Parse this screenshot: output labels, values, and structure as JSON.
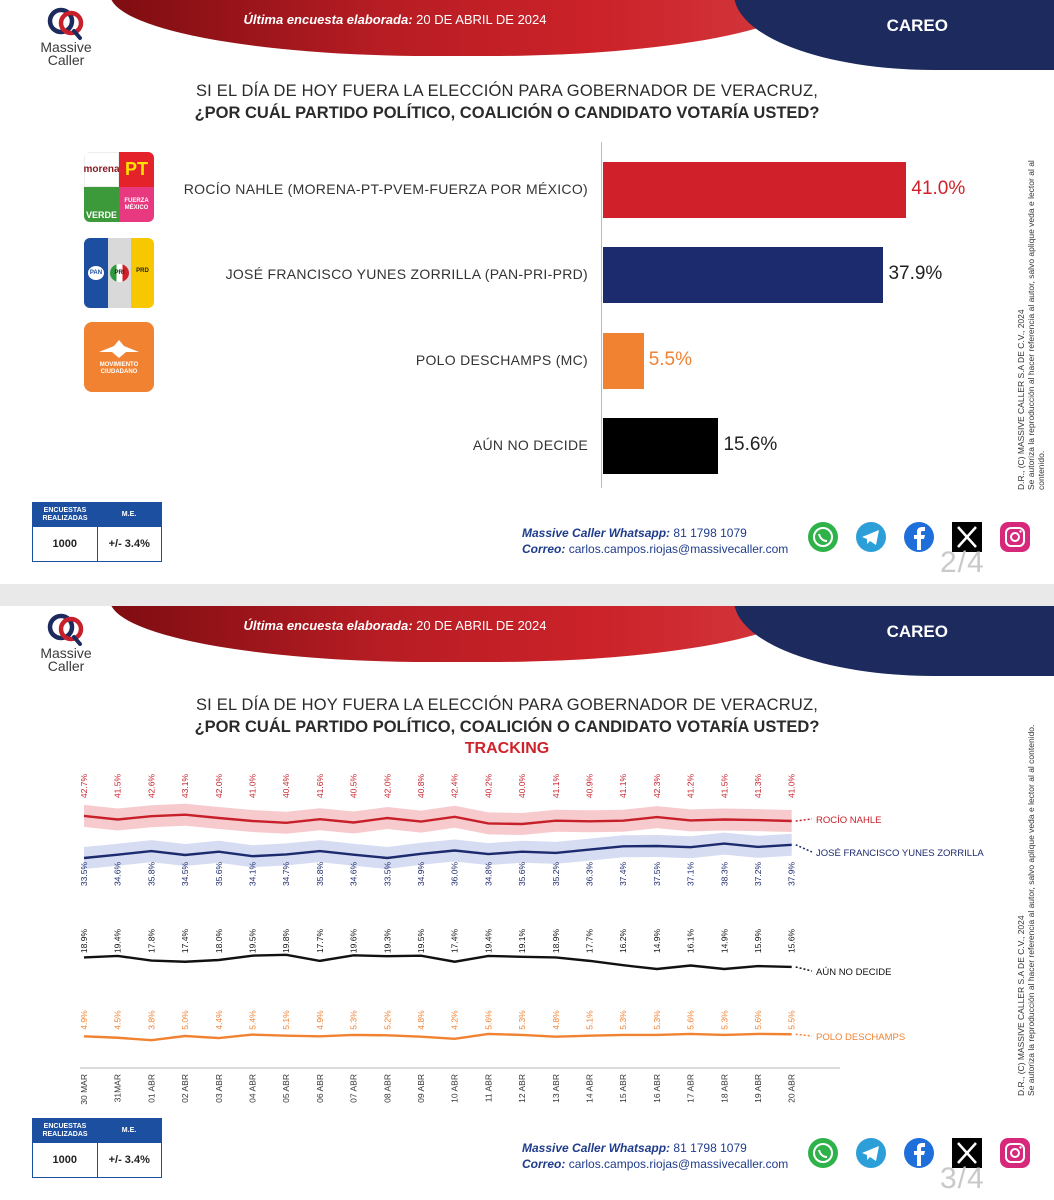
{
  "header": {
    "label": "Última encuesta elaborada:",
    "date": "20 DE ABRIL DE 2024",
    "section": "CAREO"
  },
  "logo": {
    "line1": "Massive",
    "line2": "Caller"
  },
  "question": {
    "line1": "SI EL DÍA DE HOY FUERA LA ELECCIÓN PARA GOBERNADOR DE VERACRUZ,",
    "line2": "¿POR CUÁL PARTIDO POLÍTICO, COALICIÓN O CANDIDATO  VOTARÍA USTED?",
    "tracking": "TRACKING"
  },
  "side_note": {
    "line1": "D.R., (C) MASSIVE CALLER S.A DE C.V., 2024",
    "line2": "Se autoriza la reproducción al hacer referencia al autor, salvo aplique veda e lector al al contenido."
  },
  "party_logos": {
    "morena": "morena",
    "pt": "PT",
    "verde": "VERDE",
    "fxm": "FUERZA MÉXICO",
    "pan": "PAN",
    "pri": "PRI",
    "prd": "PRD",
    "mc1": "MOVIMIENTO",
    "mc2": "CIUDADANO"
  },
  "chart_data": [
    {
      "type": "bar",
      "orientation": "horizontal",
      "categories": [
        "ROCÍO NAHLE (MORENA-PT-PVEM-FUERZA POR MÉXICO)",
        "JOSÉ FRANCISCO YUNES ZORRILLA (PAN-PRI-PRD)",
        "POLO DESCHAMPS (MC)",
        "AÚN NO DECIDE"
      ],
      "values": [
        41.0,
        37.9,
        5.5,
        15.6
      ],
      "value_labels": [
        "41.0%",
        "37.9%",
        "5.5%",
        "15.6%"
      ],
      "colors": [
        "#d0202a",
        "#1c2a6e",
        "#f08232",
        "#000000"
      ]
    },
    {
      "type": "line",
      "x": [
        "30 MAR",
        "31MAR",
        "01 ABR",
        "02 ABR",
        "03 ABR",
        "04 ABR",
        "05 ABR",
        "06 ABR",
        "07 ABR",
        "08 ABR",
        "09 ABR",
        "10 ABR",
        "11 ABR",
        "12 ABR",
        "13 ABR",
        "14 ABR",
        "15 ABR",
        "16 ABR",
        "17 ABR",
        "18 ABR",
        "19 ABR",
        "20 ABR"
      ],
      "series": [
        {
          "name": "ROCÍO NAHLE",
          "color": "#c8202a",
          "values": [
            42.7,
            41.5,
            42.6,
            43.1,
            42.0,
            41.0,
            40.4,
            41.6,
            40.5,
            42.0,
            40.8,
            42.4,
            40.2,
            40.0,
            41.1,
            40.9,
            41.1,
            42.3,
            41.2,
            41.5,
            41.3,
            41.0
          ],
          "labels": [
            "42.7%",
            "41.5%",
            "42.6%",
            "43.1%",
            "42.0%",
            "41.0%",
            "40.4%",
            "41.6%",
            "40.5%",
            "42.0%",
            "40.8%",
            "42.4%",
            "40.2%",
            "40.0%",
            "41.1%",
            "40.9%",
            "41.1%",
            "42.3%",
            "41.2%",
            "41.5%",
            "41.3%",
            "41.0%"
          ]
        },
        {
          "name": "JOSÉ FRANCISCO YUNES ZORRILLA",
          "color": "#1c2a6e",
          "values": [
            33.5,
            34.6,
            35.8,
            34.5,
            35.6,
            34.1,
            34.7,
            35.8,
            34.6,
            33.5,
            34.9,
            36.0,
            34.8,
            35.6,
            35.2,
            36.3,
            37.4,
            37.5,
            37.1,
            38.3,
            37.2,
            37.9
          ],
          "labels": [
            "33.5%",
            "34.6%",
            "35.8%",
            "34.5%",
            "35.6%",
            "34.1%",
            "34.7%",
            "35.8%",
            "34.6%",
            "33.5%",
            "34.9%",
            "36.0%",
            "34.8%",
            "35.6%",
            "35.2%",
            "36.3%",
            "37.4%",
            "37.5%",
            "37.1%",
            "38.3%",
            "37.2%",
            "37.9%"
          ]
        },
        {
          "name": "AÚN NO DECIDE",
          "color": "#111111",
          "values": [
            18.9,
            19.4,
            17.8,
            17.4,
            18.0,
            19.5,
            19.8,
            17.7,
            19.6,
            19.3,
            19.5,
            17.4,
            19.4,
            19.1,
            18.9,
            17.7,
            16.2,
            14.9,
            16.1,
            14.9,
            15.9,
            15.6
          ],
          "labels": [
            "18.9%",
            "19.4%",
            "17.8%",
            "17.4%",
            "18.0%",
            "19.5%",
            "19.8%",
            "17.7%",
            "19.6%",
            "19.3%",
            "19.5%",
            "17.4%",
            "19.4%",
            "19.1%",
            "18.9%",
            "17.7%",
            "16.2%",
            "14.9%",
            "16.1%",
            "14.9%",
            "15.9%",
            "15.6%"
          ]
        },
        {
          "name": "POLO DESCHAMPS",
          "color": "#f08232",
          "values": [
            4.9,
            4.5,
            3.8,
            5.0,
            4.4,
            5.4,
            5.1,
            4.9,
            5.3,
            5.2,
            4.8,
            4.2,
            5.6,
            5.3,
            4.8,
            5.1,
            5.3,
            5.3,
            5.6,
            5.3,
            5.6,
            5.5
          ],
          "labels": [
            "4.9%",
            "4.5%",
            "3.8%",
            "5.0%",
            "4.4%",
            "5.4%",
            "5.1%",
            "4.9%",
            "5.3%",
            "5.2%",
            "4.8%",
            "4.2%",
            "5.6%",
            "5.3%",
            "4.8%",
            "5.1%",
            "5.3%",
            "5.3%",
            "5.6%",
            "5.3%",
            "5.6%",
            "5.5%"
          ]
        }
      ]
    }
  ],
  "footer": {
    "col1_header": "ENCUESTAS REALIZADAS",
    "col2_header": "M.E.",
    "col1_value": "1000",
    "col2_value": "+/- 3.4%",
    "whatsapp_label": "Massive Caller Whatsapp:",
    "whatsapp_number": "81 1798 1079",
    "email_label": "Correo:",
    "email": "carlos.campos.riojas@massivecaller.com",
    "page1": "2/4",
    "page2": "3/4"
  },
  "socials": [
    "whatsapp-icon",
    "telegram-icon",
    "facebook-icon",
    "x-icon",
    "instagram-icon"
  ]
}
